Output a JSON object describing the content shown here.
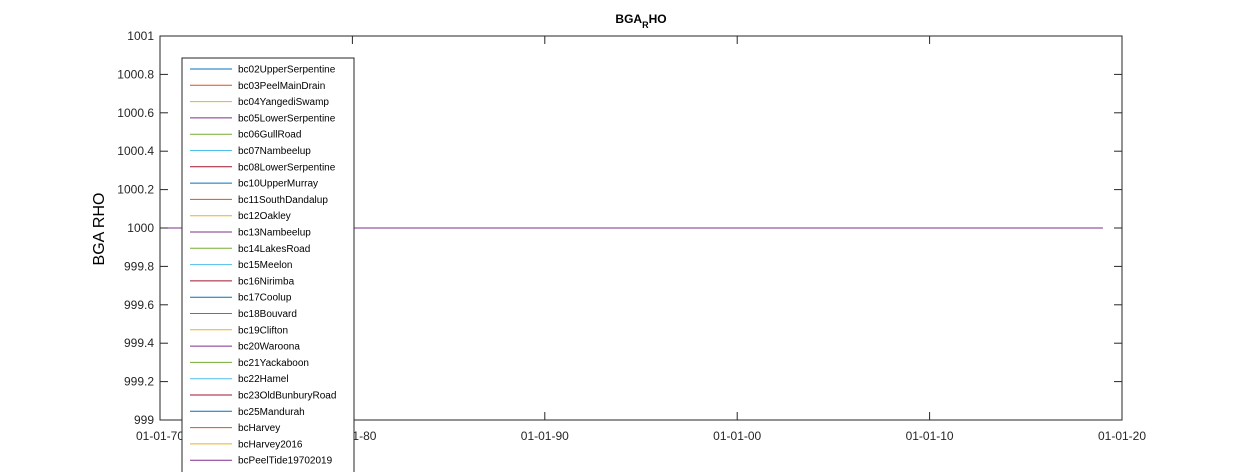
{
  "chart_data": {
    "type": "line",
    "title": "BGA",
    "title_subscript": "R",
    "title_suffix": "HO",
    "xlabel": "",
    "ylabel": "BGA RHO",
    "xlim": [
      "1970-01-01",
      "2020-01-01"
    ],
    "xticks": [
      "01-01-70",
      "01-01-80",
      "01-01-90",
      "01-01-00",
      "01-01-10",
      "01-01-20"
    ],
    "ylim": [
      999,
      1001
    ],
    "yticks": [
      "999",
      "999.2",
      "999.4",
      "999.6",
      "999.8",
      "1000",
      "1000.2",
      "1000.4",
      "1000.6",
      "1000.8",
      "1001"
    ],
    "grid": false,
    "legend_position": "top-left",
    "series": [
      {
        "name": "bc02UpperSerpentine",
        "color": "#0072bd",
        "x": [
          "1970-01-01",
          "2019-01-01"
        ],
        "y": [
          1000,
          1000
        ]
      },
      {
        "name": "bc03PeelMainDrain",
        "color": "#d95319",
        "x": [
          "1970-01-01",
          "2019-01-01"
        ],
        "y": [
          1000,
          1000
        ]
      },
      {
        "name": "bc04YangediSwamp",
        "color": "#edb120",
        "x": [
          "1970-01-01",
          "2019-01-01"
        ],
        "y": [
          1000,
          1000
        ]
      },
      {
        "name": "bc05LowerSerpentine",
        "color": "#7e2f8e",
        "x": [
          "1970-01-01",
          "2019-01-01"
        ],
        "y": [
          1000,
          1000
        ]
      },
      {
        "name": "bc06GullRoad",
        "color": "#77ac30",
        "x": [
          "1970-01-01",
          "2019-01-01"
        ],
        "y": [
          1000,
          1000
        ]
      },
      {
        "name": "bc07Nambeelup",
        "color": "#4dbeee",
        "x": [
          "1970-01-01",
          "2019-01-01"
        ],
        "y": [
          1000,
          1000
        ]
      },
      {
        "name": "bc08LowerSerpentine",
        "color": "#a2142f",
        "x": [
          "1970-01-01",
          "2019-01-01"
        ],
        "y": [
          1000,
          1000
        ]
      },
      {
        "name": "bc10UpperMurray",
        "color": "#0072bd",
        "x": [
          "1970-01-01",
          "2019-01-01"
        ],
        "y": [
          1000,
          1000
        ]
      },
      {
        "name": "bc11SouthDandalup",
        "color": "#d95319",
        "x": [
          "1970-01-01",
          "2019-01-01"
        ],
        "y": [
          1000,
          1000
        ]
      },
      {
        "name": "bc12Oakley",
        "color": "#edb120",
        "x": [
          "1970-01-01",
          "2019-01-01"
        ],
        "y": [
          1000,
          1000
        ]
      },
      {
        "name": "bc13Nambeelup",
        "color": "#7e2f8e",
        "x": [
          "1970-01-01",
          "2019-01-01"
        ],
        "y": [
          1000,
          1000
        ]
      },
      {
        "name": "bc14LakesRoad",
        "color": "#77ac30",
        "x": [
          "1970-01-01",
          "2019-01-01"
        ],
        "y": [
          1000,
          1000
        ]
      },
      {
        "name": "bc15Meelon",
        "color": "#4dbeee",
        "x": [
          "1970-01-01",
          "2019-01-01"
        ],
        "y": [
          1000,
          1000
        ]
      },
      {
        "name": "bc16Nirimba",
        "color": "#a2142f",
        "x": [
          "1970-01-01",
          "2019-01-01"
        ],
        "y": [
          1000,
          1000
        ]
      },
      {
        "name": "bc17Coolup",
        "color": "#0072bd",
        "x": [
          "1970-01-01",
          "2019-01-01"
        ],
        "y": [
          1000,
          1000
        ]
      },
      {
        "name": "bc18Bouvard",
        "color": "#d95319",
        "x": [
          "1970-01-01",
          "2019-01-01"
        ],
        "y": [
          1000,
          1000
        ]
      },
      {
        "name": "bc19Clifton",
        "color": "#edb120",
        "x": [
          "1970-01-01",
          "2019-01-01"
        ],
        "y": [
          1000,
          1000
        ]
      },
      {
        "name": "bc20Waroona",
        "color": "#7e2f8e",
        "x": [
          "1970-01-01",
          "2019-01-01"
        ],
        "y": [
          1000,
          1000
        ]
      },
      {
        "name": "bc21Yackaboon",
        "color": "#77ac30",
        "x": [
          "1970-01-01",
          "2019-01-01"
        ],
        "y": [
          1000,
          1000
        ]
      },
      {
        "name": "bc22Hamel",
        "color": "#4dbeee",
        "x": [
          "2015-01-01",
          "2019-01-01"
        ],
        "y": [
          1000,
          1000
        ]
      },
      {
        "name": "bc23OldBunburyRoad",
        "color": "#a2142f",
        "x": [
          "1970-01-01",
          "2019-01-01"
        ],
        "y": [
          1000,
          1000
        ]
      },
      {
        "name": "bc25Mandurah",
        "color": "#0072bd",
        "x": [
          "1970-01-01",
          "2019-01-01"
        ],
        "y": [
          1000,
          1000
        ]
      },
      {
        "name": "bcHarvey",
        "color": "#d95319",
        "x": [
          "1970-01-01",
          "2019-01-01"
        ],
        "y": [
          1000,
          1000
        ]
      },
      {
        "name": "bcHarvey2016",
        "color": "#edb120",
        "x": [
          "1970-01-01",
          "2019-01-01"
        ],
        "y": [
          1000,
          1000
        ]
      },
      {
        "name": "bcPeelTide19702019",
        "color": "#7e2f8e",
        "x": [
          "1970-01-01",
          "2019-01-01"
        ],
        "y": [
          1000,
          1000
        ]
      }
    ]
  }
}
